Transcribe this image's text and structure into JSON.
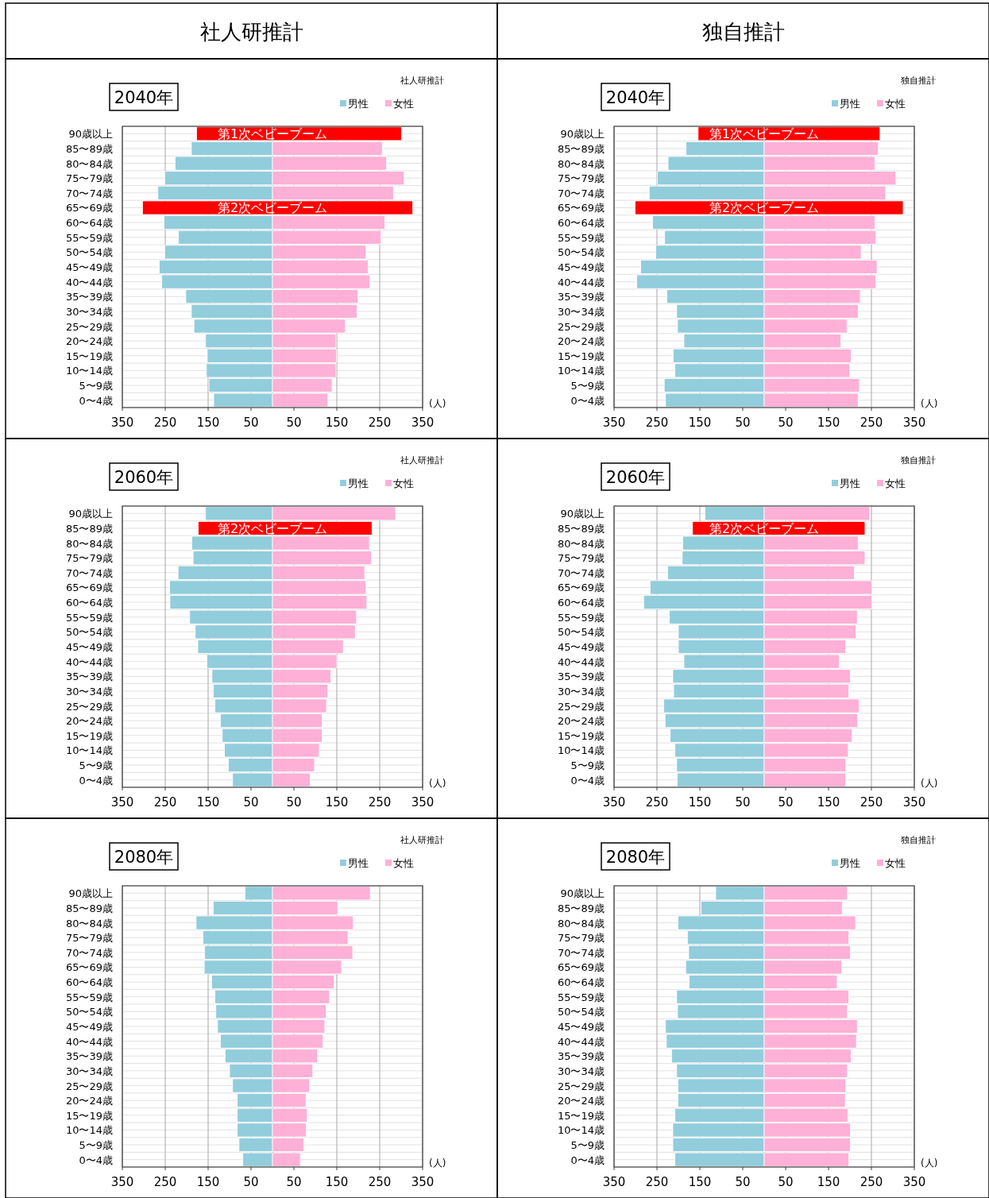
{
  "chart_data": [
    {
      "type": "bar",
      "orientation": "horizontal",
      "stacked": true,
      "title": "2040年",
      "subtitle": "社人研推計",
      "xlabel": "(人)",
      "legend": "top right",
      "grid": true,
      "categories": [
        "90歳以上",
        "85〜89歳",
        "80〜84歳",
        "75〜79歳",
        "70〜74歳",
        "65〜69歳",
        "60〜64歳",
        "55〜59歳",
        "50〜54歳",
        "45〜49歳",
        "40〜44歳",
        "35〜39歳",
        "30〜34歳",
        "25〜29歳",
        "20〜24歳",
        "15〜19歳",
        "10〜14歳",
        "5〜9歳",
        "0〜4歳"
      ],
      "xlim": [
        -350,
        350
      ],
      "xticks": [
        {
          "value": -350,
          "label": "350"
        },
        {
          "value": -250,
          "label": "250"
        },
        {
          "value": -150,
          "label": "150"
        },
        {
          "value": -50,
          "label": "50"
        },
        50,
        150,
        250,
        350
      ],
      "series": [
        {
          "name": "男性",
          "color": "#92cddc",
          "colors": [
            "#ff0000",
            "#92cddc",
            "#92cddc",
            "#92cddc",
            "#92cddc",
            "#ff0000",
            "#92cddc",
            "#92cddc",
            "#92cddc",
            "#92cddc",
            "#92cddc",
            "#92cddc",
            "#92cddc",
            "#92cddc",
            "#92cddc",
            "#92cddc",
            "#92cddc",
            "#92cddc",
            "#92cddc"
          ],
          "values": [
            -177,
            -189,
            -227,
            -251,
            -267,
            -303,
            -253,
            -219,
            -251,
            -264,
            -258,
            -202,
            -189,
            -183,
            -156,
            -152,
            -154,
            -148,
            -137
          ]
        },
        {
          "name": "女性",
          "color": "#ffb0d7",
          "colors": [
            "#ff0000",
            "#ffb0d7",
            "#ffb0d7",
            "#ffb0d7",
            "#ffb0d7",
            "#ff0000",
            "#ffb0d7",
            "#ffb0d7",
            "#ffb0d7",
            "#ffb0d7",
            "#ffb0d7",
            "#ffb0d7",
            "#ffb0d7",
            "#ffb0d7",
            "#ffb0d7",
            "#ffb0d7",
            "#ffb0d7",
            "#ffb0d7",
            "#ffb0d7"
          ],
          "values": [
            301,
            256,
            266,
            307,
            282,
            327,
            262,
            253,
            218,
            223,
            227,
            199,
            197,
            170,
            148,
            149,
            148,
            139,
            129
          ]
        }
      ],
      "annotations": [
        "社人研推計",
        {
          "text": "第1次ベビーブーム",
          "y": "90歳以上"
        },
        {
          "text": "第2次ベビーブーム",
          "y": "65〜69歳"
        }
      ]
    },
    {
      "type": "bar",
      "orientation": "horizontal",
      "stacked": true,
      "title": "2040年",
      "subtitle": "独自推計",
      "xlabel": "(人)",
      "legend": "top right",
      "grid": true,
      "categories": [
        "90歳以上",
        "85〜89歳",
        "80〜84歳",
        "75〜79歳",
        "70〜74歳",
        "65〜69歳",
        "60〜64歳",
        "55〜59歳",
        "50〜54歳",
        "45〜49歳",
        "40〜44歳",
        "35〜39歳",
        "30〜34歳",
        "25〜29歳",
        "20〜24歳",
        "15〜19歳",
        "10〜14歳",
        "5〜9歳",
        "0〜4歳"
      ],
      "xlim": [
        -350,
        350
      ],
      "xticks": [
        {
          "value": -350,
          "label": "350"
        },
        {
          "value": -250,
          "label": "250"
        },
        {
          "value": -150,
          "label": "150"
        },
        {
          "value": -50,
          "label": "50"
        },
        50,
        150,
        250,
        350
      ],
      "series": [
        {
          "name": "男性",
          "color": "#92cddc",
          "colors": [
            "#ff0000",
            "#92cddc",
            "#92cddc",
            "#92cddc",
            "#92cddc",
            "#ff0000",
            "#92cddc",
            "#92cddc",
            "#92cddc",
            "#92cddc",
            "#92cddc",
            "#92cddc",
            "#92cddc",
            "#92cddc",
            "#92cddc",
            "#92cddc",
            "#92cddc",
            "#92cddc",
            "#92cddc"
          ],
          "values": [
            -154,
            -182,
            -224,
            -249,
            -268,
            -301,
            -260,
            -232,
            -253,
            -288,
            -297,
            -227,
            -204,
            -202,
            -187,
            -212,
            -208,
            -233,
            -230
          ]
        },
        {
          "name": "女性",
          "color": "#ffb0d7",
          "colors": [
            "#ff0000",
            "#ffb0d7",
            "#ffb0d7",
            "#ffb0d7",
            "#ffb0d7",
            "#ff0000",
            "#ffb0d7",
            "#ffb0d7",
            "#ffb0d7",
            "#ffb0d7",
            "#ffb0d7",
            "#ffb0d7",
            "#ffb0d7",
            "#ffb0d7",
            "#ffb0d7",
            "#ffb0d7",
            "#ffb0d7",
            "#ffb0d7",
            "#ffb0d7"
          ],
          "values": [
            270,
            266,
            258,
            307,
            283,
            324,
            258,
            260,
            226,
            263,
            260,
            224,
            219,
            193,
            179,
            203,
            199,
            222,
            219
          ]
        }
      ],
      "annotations": [
        "独自推計",
        {
          "text": "第1次ベビーブーム",
          "y": "90歳以上"
        },
        {
          "text": "第2次ベビーブーム",
          "y": "65〜69歳"
        }
      ]
    },
    {
      "type": "bar",
      "orientation": "horizontal",
      "stacked": true,
      "title": "2060年",
      "subtitle": "社人研推計",
      "xlabel": "(人)",
      "legend": "top right",
      "grid": true,
      "categories": [
        "90歳以上",
        "85〜89歳",
        "80〜84歳",
        "75〜79歳",
        "70〜74歳",
        "65〜69歳",
        "60〜64歳",
        "55〜59歳",
        "50〜54歳",
        "45〜49歳",
        "40〜44歳",
        "35〜39歳",
        "30〜34歳",
        "25〜29歳",
        "20〜24歳",
        "15〜19歳",
        "10〜14歳",
        "5〜9歳",
        "0〜4歳"
      ],
      "xlim": [
        -350,
        350
      ],
      "xticks": [
        {
          "value": -350,
          "label": "350"
        },
        {
          "value": -250,
          "label": "250"
        },
        {
          "value": -150,
          "label": "150"
        },
        {
          "value": -50,
          "label": "50"
        },
        50,
        150,
        250,
        350
      ],
      "series": [
        {
          "name": "男性",
          "color": "#92cddc",
          "colors": [
            "#92cddc",
            "#ff0000",
            "#92cddc",
            "#92cddc",
            "#92cddc",
            "#92cddc",
            "#92cddc",
            "#92cddc",
            "#92cddc",
            "#92cddc",
            "#92cddc",
            "#92cddc",
            "#92cddc",
            "#92cddc",
            "#92cddc",
            "#92cddc",
            "#92cddc",
            "#92cddc",
            "#92cddc"
          ],
          "values": [
            -156,
            -173,
            -188,
            -185,
            -220,
            -240,
            -239,
            -193,
            -180,
            -174,
            -153,
            -141,
            -138,
            -134,
            -121,
            -117,
            -112,
            -103,
            -93
          ]
        },
        {
          "name": "女性",
          "color": "#ffb0d7",
          "colors": [
            "#ffb0d7",
            "#ff0000",
            "#ffb0d7",
            "#ffb0d7",
            "#ffb0d7",
            "#ffb0d7",
            "#ffb0d7",
            "#ffb0d7",
            "#ffb0d7",
            "#ffb0d7",
            "#ffb0d7",
            "#ffb0d7",
            "#ffb0d7",
            "#ffb0d7",
            "#ffb0d7",
            "#ffb0d7",
            "#ffb0d7",
            "#ffb0d7",
            "#ffb0d7"
          ],
          "values": [
            287,
            232,
            226,
            231,
            215,
            218,
            220,
            196,
            193,
            165,
            150,
            136,
            129,
            126,
            116,
            116,
            109,
            98,
            88
          ]
        }
      ],
      "annotations": [
        {
          "text": "第2次ベビーブーム",
          "y": "85〜89歳"
        }
      ]
    },
    {
      "type": "bar",
      "orientation": "horizontal",
      "stacked": true,
      "title": "2060年",
      "subtitle": "独自推計",
      "xlabel": "(人)",
      "legend": "top right",
      "grid": true,
      "categories": [
        "90歳以上",
        "85〜89歳",
        "80〜84歳",
        "75〜79歳",
        "70〜74歳",
        "65〜69歳",
        "60〜64歳",
        "55〜59歳",
        "50〜54歳",
        "45〜49歳",
        "40〜44歳",
        "35〜39歳",
        "30〜34歳",
        "25〜29歳",
        "20〜24歳",
        "15〜19歳",
        "10〜14歳",
        "5〜9歳",
        "0〜4歳"
      ],
      "xlim": [
        -350,
        350
      ],
      "xticks": [
        {
          "value": -350,
          "label": "350"
        },
        {
          "value": -250,
          "label": "250"
        },
        {
          "value": -150,
          "label": "150"
        },
        {
          "value": -50,
          "label": "50"
        },
        50,
        150,
        250,
        350
      ],
      "series": [
        {
          "name": "男性",
          "color": "#92cddc",
          "colors": [
            "#92cddc",
            "#ff0000",
            "#92cddc",
            "#92cddc",
            "#92cddc",
            "#92cddc",
            "#92cddc",
            "#92cddc",
            "#92cddc",
            "#92cddc",
            "#92cddc",
            "#92cddc",
            "#92cddc",
            "#92cddc",
            "#92cddc",
            "#92cddc",
            "#92cddc",
            "#92cddc",
            "#92cddc"
          ],
          "values": [
            -138,
            -167,
            -190,
            -191,
            -225,
            -266,
            -281,
            -221,
            -200,
            -200,
            -187,
            -213,
            -211,
            -234,
            -231,
            -219,
            -208,
            -204,
            -203
          ]
        },
        {
          "name": "女性",
          "color": "#ffb0d7",
          "colors": [
            "#ffb0d7",
            "#ff0000",
            "#ffb0d7",
            "#ffb0d7",
            "#ffb0d7",
            "#ffb0d7",
            "#ffb0d7",
            "#ffb0d7",
            "#ffb0d7",
            "#ffb0d7",
            "#ffb0d7",
            "#ffb0d7",
            "#ffb0d7",
            "#ffb0d7",
            "#ffb0d7",
            "#ffb0d7",
            "#ffb0d7",
            "#ffb0d7",
            "#ffb0d7"
          ],
          "values": [
            246,
            235,
            219,
            235,
            210,
            251,
            251,
            217,
            214,
            190,
            175,
            201,
            197,
            221,
            218,
            205,
            196,
            190,
            190
          ]
        }
      ],
      "annotations": [
        {
          "text": "第2次ベビーブーム",
          "y": "85〜89歳"
        }
      ]
    },
    {
      "type": "bar",
      "orientation": "horizontal",
      "stacked": true,
      "title": "2080年",
      "subtitle": "社人研推計",
      "xlabel": "(人)",
      "legend": "top right",
      "grid": true,
      "categories": [
        "90歳以上",
        "85〜89歳",
        "80〜84歳",
        "75〜79歳",
        "70〜74歳",
        "65〜69歳",
        "60〜64歳",
        "55〜59歳",
        "50〜54歳",
        "45〜49歳",
        "40〜44歳",
        "35〜39歳",
        "30〜34歳",
        "25〜29歳",
        "20〜24歳",
        "15〜19歳",
        "10〜14歳",
        "5〜9歳",
        "0〜4歳"
      ],
      "xlim": [
        -350,
        350
      ],
      "xticks": [
        {
          "value": -350,
          "label": "350"
        },
        {
          "value": -250,
          "label": "250"
        },
        {
          "value": -150,
          "label": "150"
        },
        {
          "value": -50,
          "label": "50"
        },
        50,
        150,
        250,
        350
      ],
      "series": [
        {
          "name": "男性",
          "color": "#92cddc",
          "values": [
            -64,
            -138,
            -178,
            -162,
            -158,
            -159,
            -142,
            -134,
            -132,
            -128,
            -121,
            -110,
            -100,
            -93,
            -82,
            -82,
            -82,
            -78,
            -69
          ]
        },
        {
          "name": "女性",
          "color": "#ffb0d7",
          "values": [
            228,
            152,
            188,
            176,
            187,
            161,
            144,
            133,
            125,
            122,
            118,
            105,
            94,
            86,
            78,
            81,
            79,
            73,
            65
          ]
        }
      ]
    },
    {
      "type": "bar",
      "orientation": "horizontal",
      "stacked": true,
      "title": "2080年",
      "subtitle": "独自推計",
      "xlabel": "(人)",
      "legend": "top right",
      "grid": true,
      "categories": [
        "90歳以上",
        "85〜89歳",
        "80〜84歳",
        "75〜79歳",
        "70〜74歳",
        "65〜69歳",
        "60〜64歳",
        "55〜59歳",
        "50〜54歳",
        "45〜49歳",
        "40〜44歳",
        "35〜39歳",
        "30〜34歳",
        "25〜29歳",
        "20〜24歳",
        "15〜19歳",
        "10〜14歳",
        "5〜9歳",
        "0〜4歳"
      ],
      "xlim": [
        -350,
        350
      ],
      "xticks": [
        {
          "value": -350,
          "label": "350"
        },
        {
          "value": -250,
          "label": "250"
        },
        {
          "value": -150,
          "label": "150"
        },
        {
          "value": -50,
          "label": "50"
        },
        50,
        150,
        250,
        350
      ],
      "series": [
        {
          "name": "男性",
          "color": "#92cddc",
          "values": [
            -113,
            -147,
            -201,
            -179,
            -176,
            -183,
            -175,
            -204,
            -202,
            -230,
            -228,
            -216,
            -204,
            -201,
            -201,
            -208,
            -213,
            -213,
            -208
          ]
        },
        {
          "name": "女性",
          "color": "#ffb0d7",
          "values": [
            194,
            182,
            213,
            197,
            201,
            181,
            170,
            197,
            194,
            217,
            215,
            203,
            194,
            190,
            189,
            195,
            201,
            201,
            197
          ]
        }
      ]
    }
  ]
}
